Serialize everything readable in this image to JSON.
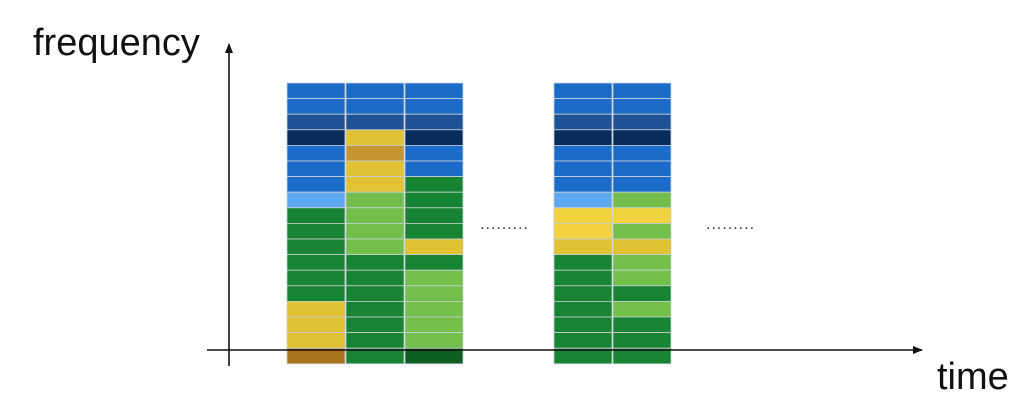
{
  "axes": {
    "y_label": "frequency",
    "x_label": "time"
  },
  "ellipsis_text": ".........",
  "palette": {
    "B": "#1a6cc8",
    "N": "#1f5396",
    "D": "#082c5a",
    "L": "#5fa9f0",
    "G": "#178434",
    "g": "#72bf4c",
    "E": "#0e5e24",
    "Y": "#e0c232",
    "y": "#f2d23e",
    "O": "#c49530",
    "R": "#a8731c",
    "grid": "#c9cfd6",
    "axis": "#111111"
  },
  "columns": [
    [
      "B",
      "B",
      "N",
      "D",
      "B",
      "B",
      "B",
      "L",
      "G",
      "G",
      "G",
      "G",
      "G",
      "G",
      "Y",
      "Y",
      "Y",
      "R"
    ],
    [
      "B",
      "B",
      "N",
      "Y",
      "O",
      "Y",
      "Y",
      "g",
      "g",
      "g",
      "g",
      "G",
      "G",
      "G",
      "G",
      "G",
      "G",
      "G"
    ],
    [
      "B",
      "B",
      "N",
      "D",
      "B",
      "B",
      "G",
      "G",
      "G",
      "G",
      "Y",
      "G",
      "g",
      "g",
      "g",
      "g",
      "g",
      "E"
    ],
    [
      "B",
      "B",
      "N",
      "D",
      "B",
      "B",
      "B",
      "L",
      "y",
      "y",
      "Y",
      "G",
      "G",
      "G",
      "G",
      "G",
      "G",
      "G"
    ],
    [
      "B",
      "B",
      "N",
      "D",
      "B",
      "B",
      "B",
      "g",
      "y",
      "g",
      "Y",
      "g",
      "g",
      "G",
      "g",
      "G",
      "G",
      "G"
    ]
  ]
}
